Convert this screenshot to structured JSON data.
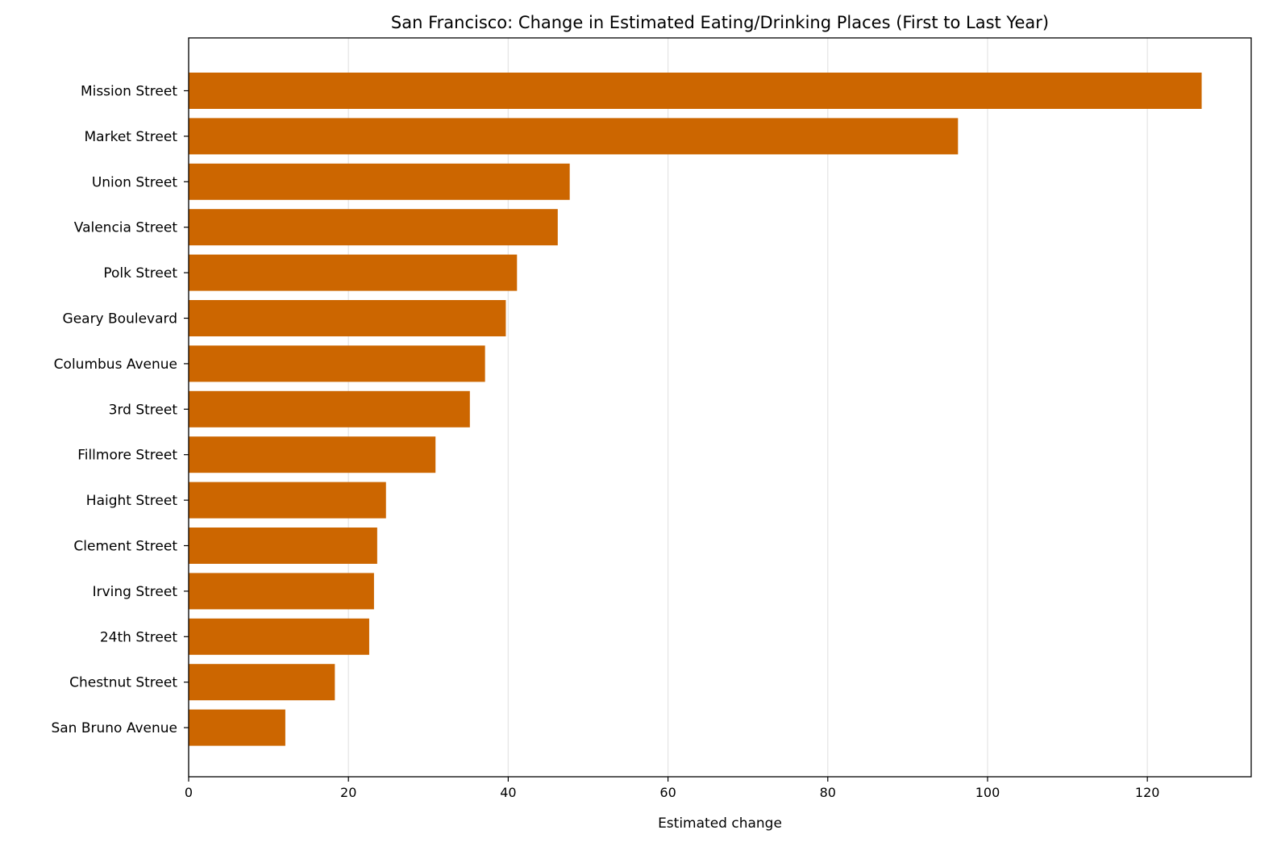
{
  "chart_data": {
    "type": "bar",
    "orientation": "horizontal",
    "title": "San Francisco: Change in Estimated Eating/Drinking Places (First to Last Year)",
    "xlabel": "Estimated change",
    "ylabel": "",
    "xlim": [
      0,
      133
    ],
    "xticks": [
      0,
      20,
      40,
      60,
      80,
      100,
      120
    ],
    "grid": "x",
    "bar_color": "#cc6600",
    "categories": [
      "Mission Street",
      "Market Street",
      "Union Street",
      "Valencia Street",
      "Polk Street",
      "Geary Boulevard",
      "Columbus Avenue",
      "3rd Street",
      "Fillmore Street",
      "Haight Street",
      "Clement Street",
      "Irving Street",
      "24th Street",
      "Chestnut Street",
      "San Bruno Avenue"
    ],
    "values": [
      126.8,
      96.3,
      47.7,
      46.2,
      41.1,
      39.7,
      37.1,
      35.2,
      30.9,
      24.7,
      23.6,
      23.2,
      22.6,
      18.3,
      12.1
    ]
  }
}
